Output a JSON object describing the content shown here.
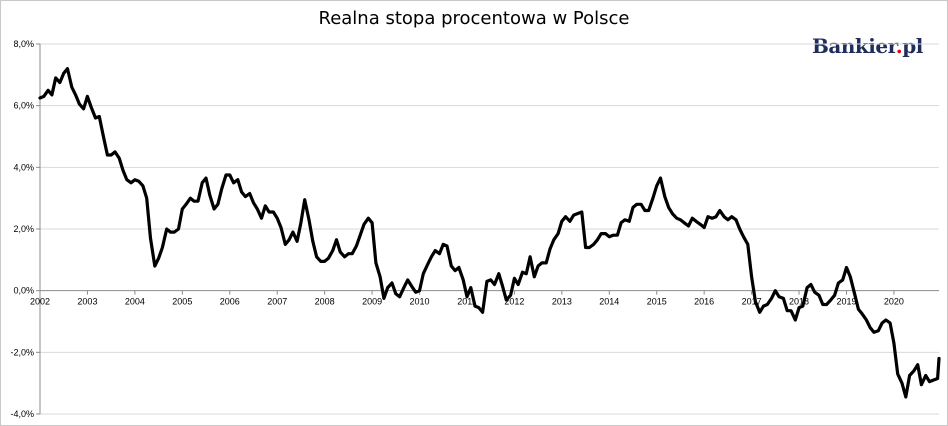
{
  "brand": {
    "name": "Bankier",
    "dot": ".",
    "tld": "pl"
  },
  "colors": {
    "line": "#000000",
    "grid": "#d9d9d9",
    "axis": "#8c8c8c",
    "brand_text": "#1f2d5a",
    "brand_dot": "#e2001a"
  },
  "chart_data": {
    "type": "line",
    "title": "Realna stopa procentowa w Polsce",
    "xlabel": "",
    "ylabel": "",
    "xlim": [
      2002,
      2020.95
    ],
    "ylim": [
      -4,
      8
    ],
    "grid": true,
    "y_ticks": [
      {
        "value": 8,
        "label": "8,0%"
      },
      {
        "value": 6,
        "label": "6,0%"
      },
      {
        "value": 4,
        "label": "4,0%"
      },
      {
        "value": 2,
        "label": "2,0%"
      },
      {
        "value": 0,
        "label": "0,0%"
      },
      {
        "value": -2,
        "label": "-2,0%"
      },
      {
        "value": -4,
        "label": "-4,0%"
      }
    ],
    "x_ticks": [
      {
        "value": 2002,
        "label": "2002"
      },
      {
        "value": 2003,
        "label": "2003"
      },
      {
        "value": 2004,
        "label": "2004"
      },
      {
        "value": 2005,
        "label": "2005"
      },
      {
        "value": 2006,
        "label": "2006"
      },
      {
        "value": 2007,
        "label": "2007"
      },
      {
        "value": 2008,
        "label": "2008"
      },
      {
        "value": 2009,
        "label": "2009"
      },
      {
        "value": 2010,
        "label": "2010"
      },
      {
        "value": 2011,
        "label": "2011"
      },
      {
        "value": 2012,
        "label": "2012"
      },
      {
        "value": 2013,
        "label": "2013"
      },
      {
        "value": 2014,
        "label": "2014"
      },
      {
        "value": 2015,
        "label": "2015"
      },
      {
        "value": 2016,
        "label": "2016"
      },
      {
        "value": 2017,
        "label": "2017"
      },
      {
        "value": 2018,
        "label": "2018"
      },
      {
        "value": 2019,
        "label": "2019"
      },
      {
        "value": 2020,
        "label": "2020"
      }
    ],
    "series": [
      {
        "name": "",
        "points": [
          [
            2002.0,
            6.25
          ],
          [
            2002.08,
            6.3
          ],
          [
            2002.17,
            6.5
          ],
          [
            2002.25,
            6.35
          ],
          [
            2002.33,
            6.9
          ],
          [
            2002.42,
            6.75
          ],
          [
            2002.5,
            7.05
          ],
          [
            2002.58,
            7.2
          ],
          [
            2002.67,
            6.6
          ],
          [
            2002.75,
            6.35
          ],
          [
            2002.83,
            6.05
          ],
          [
            2002.92,
            5.9
          ],
          [
            2003.0,
            6.3
          ],
          [
            2003.08,
            5.95
          ],
          [
            2003.17,
            5.6
          ],
          [
            2003.25,
            5.65
          ],
          [
            2003.33,
            5.05
          ],
          [
            2003.42,
            4.4
          ],
          [
            2003.5,
            4.4
          ],
          [
            2003.58,
            4.5
          ],
          [
            2003.67,
            4.3
          ],
          [
            2003.75,
            3.9
          ],
          [
            2003.83,
            3.6
          ],
          [
            2003.92,
            3.5
          ],
          [
            2004.0,
            3.6
          ],
          [
            2004.08,
            3.55
          ],
          [
            2004.17,
            3.4
          ],
          [
            2004.25,
            3.0
          ],
          [
            2004.33,
            1.7
          ],
          [
            2004.42,
            0.8
          ],
          [
            2004.5,
            1.05
          ],
          [
            2004.58,
            1.4
          ],
          [
            2004.67,
            2.0
          ],
          [
            2004.75,
            1.9
          ],
          [
            2004.83,
            1.9
          ],
          [
            2004.92,
            2.0
          ],
          [
            2005.0,
            2.65
          ],
          [
            2005.08,
            2.8
          ],
          [
            2005.17,
            3.0
          ],
          [
            2005.25,
            2.9
          ],
          [
            2005.33,
            2.9
          ],
          [
            2005.42,
            3.5
          ],
          [
            2005.5,
            3.65
          ],
          [
            2005.58,
            3.1
          ],
          [
            2005.67,
            2.65
          ],
          [
            2005.75,
            2.8
          ],
          [
            2005.83,
            3.3
          ],
          [
            2005.92,
            3.75
          ],
          [
            2006.0,
            3.75
          ],
          [
            2006.08,
            3.5
          ],
          [
            2006.17,
            3.6
          ],
          [
            2006.25,
            3.2
          ],
          [
            2006.33,
            3.05
          ],
          [
            2006.42,
            3.15
          ],
          [
            2006.5,
            2.85
          ],
          [
            2006.58,
            2.65
          ],
          [
            2006.67,
            2.35
          ],
          [
            2006.75,
            2.75
          ],
          [
            2006.83,
            2.55
          ],
          [
            2006.92,
            2.55
          ],
          [
            2007.0,
            2.35
          ],
          [
            2007.08,
            2.05
          ],
          [
            2007.17,
            1.5
          ],
          [
            2007.25,
            1.65
          ],
          [
            2007.33,
            1.9
          ],
          [
            2007.42,
            1.6
          ],
          [
            2007.5,
            2.2
          ],
          [
            2007.58,
            2.95
          ],
          [
            2007.67,
            2.3
          ],
          [
            2007.75,
            1.6
          ],
          [
            2007.83,
            1.1
          ],
          [
            2007.92,
            0.95
          ],
          [
            2008.0,
            0.95
          ],
          [
            2008.08,
            1.05
          ],
          [
            2008.17,
            1.3
          ],
          [
            2008.25,
            1.65
          ],
          [
            2008.33,
            1.25
          ],
          [
            2008.42,
            1.1
          ],
          [
            2008.5,
            1.2
          ],
          [
            2008.58,
            1.2
          ],
          [
            2008.67,
            1.45
          ],
          [
            2008.75,
            1.8
          ],
          [
            2008.83,
            2.15
          ],
          [
            2008.92,
            2.35
          ],
          [
            2009.0,
            2.2
          ],
          [
            2009.08,
            0.9
          ],
          [
            2009.17,
            0.45
          ],
          [
            2009.25,
            -0.25
          ],
          [
            2009.33,
            0.1
          ],
          [
            2009.42,
            0.25
          ],
          [
            2009.5,
            -0.1
          ],
          [
            2009.58,
            -0.2
          ],
          [
            2009.67,
            0.1
          ],
          [
            2009.75,
            0.35
          ],
          [
            2009.83,
            0.15
          ],
          [
            2009.92,
            -0.05
          ],
          [
            2010.0,
            0.0
          ],
          [
            2010.08,
            0.55
          ],
          [
            2010.17,
            0.85
          ],
          [
            2010.25,
            1.1
          ],
          [
            2010.33,
            1.3
          ],
          [
            2010.42,
            1.2
          ],
          [
            2010.5,
            1.5
          ],
          [
            2010.58,
            1.45
          ],
          [
            2010.67,
            0.8
          ],
          [
            2010.75,
            0.65
          ],
          [
            2010.83,
            0.75
          ],
          [
            2010.92,
            0.35
          ],
          [
            2011.0,
            -0.2
          ],
          [
            2011.08,
            0.1
          ],
          [
            2011.17,
            -0.5
          ],
          [
            2011.25,
            -0.55
          ],
          [
            2011.33,
            -0.7
          ],
          [
            2011.42,
            0.3
          ],
          [
            2011.5,
            0.35
          ],
          [
            2011.58,
            0.2
          ],
          [
            2011.67,
            0.55
          ],
          [
            2011.75,
            0.15
          ],
          [
            2011.83,
            -0.3
          ],
          [
            2011.92,
            -0.15
          ],
          [
            2012.0,
            0.4
          ],
          [
            2012.08,
            0.2
          ],
          [
            2012.17,
            0.6
          ],
          [
            2012.25,
            0.55
          ],
          [
            2012.33,
            1.1
          ],
          [
            2012.42,
            0.45
          ],
          [
            2012.5,
            0.8
          ],
          [
            2012.58,
            0.9
          ],
          [
            2012.67,
            0.9
          ],
          [
            2012.75,
            1.35
          ],
          [
            2012.83,
            1.65
          ],
          [
            2012.92,
            1.85
          ],
          [
            2013.0,
            2.25
          ],
          [
            2013.08,
            2.4
          ],
          [
            2013.17,
            2.25
          ],
          [
            2013.25,
            2.45
          ],
          [
            2013.33,
            2.5
          ],
          [
            2013.42,
            2.55
          ],
          [
            2013.5,
            1.4
          ],
          [
            2013.58,
            1.4
          ],
          [
            2013.67,
            1.5
          ],
          [
            2013.75,
            1.65
          ],
          [
            2013.83,
            1.85
          ],
          [
            2013.92,
            1.85
          ],
          [
            2014.0,
            1.75
          ],
          [
            2014.08,
            1.8
          ],
          [
            2014.17,
            1.8
          ],
          [
            2014.25,
            2.2
          ],
          [
            2014.33,
            2.3
          ],
          [
            2014.42,
            2.25
          ],
          [
            2014.5,
            2.7
          ],
          [
            2014.58,
            2.8
          ],
          [
            2014.67,
            2.8
          ],
          [
            2014.75,
            2.6
          ],
          [
            2014.83,
            2.6
          ],
          [
            2014.92,
            3.0
          ],
          [
            2015.0,
            3.4
          ],
          [
            2015.08,
            3.65
          ],
          [
            2015.17,
            3.05
          ],
          [
            2015.25,
            2.7
          ],
          [
            2015.33,
            2.5
          ],
          [
            2015.42,
            2.35
          ],
          [
            2015.5,
            2.3
          ],
          [
            2015.58,
            2.2
          ],
          [
            2015.67,
            2.1
          ],
          [
            2015.75,
            2.35
          ],
          [
            2015.83,
            2.25
          ],
          [
            2015.92,
            2.15
          ],
          [
            2016.0,
            2.05
          ],
          [
            2016.08,
            2.4
          ],
          [
            2016.17,
            2.35
          ],
          [
            2016.25,
            2.4
          ],
          [
            2016.33,
            2.6
          ],
          [
            2016.42,
            2.4
          ],
          [
            2016.5,
            2.3
          ],
          [
            2016.58,
            2.4
          ],
          [
            2016.67,
            2.3
          ],
          [
            2016.75,
            2.0
          ],
          [
            2016.83,
            1.75
          ],
          [
            2016.92,
            1.5
          ],
          [
            2017.0,
            0.45
          ],
          [
            2017.08,
            -0.35
          ],
          [
            2017.17,
            -0.7
          ],
          [
            2017.25,
            -0.5
          ],
          [
            2017.33,
            -0.45
          ],
          [
            2017.42,
            -0.25
          ],
          [
            2017.5,
            0.0
          ],
          [
            2017.58,
            -0.2
          ],
          [
            2017.67,
            -0.25
          ],
          [
            2017.75,
            -0.65
          ],
          [
            2017.83,
            -0.65
          ],
          [
            2017.92,
            -0.95
          ],
          [
            2018.0,
            -0.55
          ],
          [
            2018.08,
            -0.5
          ],
          [
            2018.17,
            0.1
          ],
          [
            2018.25,
            0.2
          ],
          [
            2018.33,
            -0.05
          ],
          [
            2018.42,
            -0.15
          ],
          [
            2018.5,
            -0.45
          ],
          [
            2018.58,
            -0.45
          ],
          [
            2018.67,
            -0.3
          ],
          [
            2018.75,
            -0.15
          ],
          [
            2018.83,
            0.25
          ],
          [
            2018.92,
            0.35
          ],
          [
            2019.0,
            0.75
          ],
          [
            2019.08,
            0.45
          ],
          [
            2019.17,
            -0.1
          ],
          [
            2019.25,
            -0.6
          ],
          [
            2019.33,
            -0.75
          ],
          [
            2019.42,
            -0.95
          ],
          [
            2019.5,
            -1.2
          ],
          [
            2019.58,
            -1.35
          ],
          [
            2019.67,
            -1.3
          ],
          [
            2019.75,
            -1.05
          ],
          [
            2019.83,
            -0.95
          ],
          [
            2019.92,
            -1.05
          ],
          [
            2020.0,
            -1.7
          ],
          [
            2020.08,
            -2.7
          ],
          [
            2020.17,
            -3.0
          ],
          [
            2020.25,
            -3.45
          ],
          [
            2020.33,
            -2.75
          ],
          [
            2020.42,
            -2.6
          ],
          [
            2020.5,
            -2.4
          ],
          [
            2020.58,
            -3.05
          ],
          [
            2020.67,
            -2.75
          ],
          [
            2020.75,
            -2.95
          ],
          [
            2020.83,
            -2.9
          ],
          [
            2020.92,
            -2.85
          ],
          [
            2020.95,
            -2.2
          ]
        ]
      }
    ]
  }
}
